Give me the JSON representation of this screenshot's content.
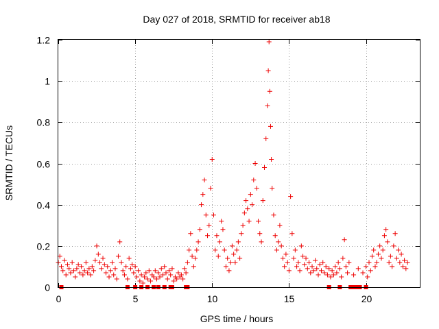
{
  "chart_data": {
    "type": "scatter",
    "title": "Day 027 of 2018, SRMTID for receiver ab18",
    "xlabel": "GPS time / hours",
    "ylabel": "SRMTID / TECUs",
    "xlim": [
      0,
      23.5
    ],
    "ylim": [
      0,
      1.2
    ],
    "x_ticks": [
      0,
      5,
      10,
      15,
      20
    ],
    "x_tick_labels": [
      "0",
      "5",
      "10",
      "15",
      "20"
    ],
    "y_ticks": [
      0,
      0.2,
      0.4,
      0.6,
      0.8,
      1.0,
      1.2
    ],
    "y_tick_labels": [
      "0",
      "0.2",
      "0.4",
      "0.6",
      "0.8",
      "1",
      "1.2"
    ],
    "grid": true,
    "color": "#ee0000",
    "series": [
      {
        "name": "SRMTID",
        "marker": "plus",
        "points": [
          [
            0.0,
            0.12
          ],
          [
            0.1,
            0.15
          ],
          [
            0.2,
            0.1
          ],
          [
            0.3,
            0.08
          ],
          [
            0.4,
            0.13
          ],
          [
            0.5,
            0.06
          ],
          [
            0.6,
            0.11
          ],
          [
            0.7,
            0.09
          ],
          [
            0.8,
            0.07
          ],
          [
            0.9,
            0.12
          ],
          [
            1.0,
            0.08
          ],
          [
            1.1,
            0.05
          ],
          [
            1.2,
            0.09
          ],
          [
            1.3,
            0.11
          ],
          [
            1.4,
            0.07
          ],
          [
            1.5,
            0.1
          ],
          [
            1.6,
            0.06
          ],
          [
            1.7,
            0.08
          ],
          [
            1.8,
            0.12
          ],
          [
            1.9,
            0.07
          ],
          [
            2.0,
            0.09
          ],
          [
            2.1,
            0.06
          ],
          [
            2.2,
            0.1
          ],
          [
            2.3,
            0.08
          ],
          [
            2.4,
            0.13
          ],
          [
            2.5,
            0.2
          ],
          [
            2.6,
            0.16
          ],
          [
            2.7,
            0.12
          ],
          [
            2.8,
            0.09
          ],
          [
            2.9,
            0.14
          ],
          [
            3.0,
            0.11
          ],
          [
            3.1,
            0.07
          ],
          [
            3.2,
            0.1
          ],
          [
            3.3,
            0.05
          ],
          [
            3.4,
            0.08
          ],
          [
            3.5,
            0.12
          ],
          [
            3.6,
            0.06
          ],
          [
            3.7,
            0.09
          ],
          [
            3.8,
            0.04
          ],
          [
            3.9,
            0.15
          ],
          [
            4.0,
            0.22
          ],
          [
            4.1,
            0.12
          ],
          [
            4.2,
            0.08
          ],
          [
            4.3,
            0.06
          ],
          [
            4.4,
            0.1
          ],
          [
            4.5,
            0.04
          ],
          [
            4.6,
            0.14
          ],
          [
            4.7,
            0.09
          ],
          [
            4.8,
            0.11
          ],
          [
            4.9,
            0.07
          ],
          [
            5.0,
            0.1
          ],
          [
            5.1,
            0.05
          ],
          [
            5.2,
            0.08
          ],
          [
            5.3,
            0.03
          ],
          [
            5.4,
            0.06
          ],
          [
            5.5,
            0.02
          ],
          [
            5.6,
            0.05
          ],
          [
            5.7,
            0.07
          ],
          [
            5.8,
            0.04
          ],
          [
            5.9,
            0.08
          ],
          [
            6.0,
            0.03
          ],
          [
            6.1,
            0.06
          ],
          [
            6.2,
            0.05
          ],
          [
            6.3,
            0.08
          ],
          [
            6.4,
            0.04
          ],
          [
            6.5,
            0.07
          ],
          [
            6.6,
            0.05
          ],
          [
            6.7,
            0.09
          ],
          [
            6.8,
            0.06
          ],
          [
            6.9,
            0.1
          ],
          [
            7.0,
            0.07
          ],
          [
            7.1,
            0.04
          ],
          [
            7.2,
            0.08
          ],
          [
            7.3,
            0.06
          ],
          [
            7.4,
            0.09
          ],
          [
            7.5,
            0.03
          ],
          [
            7.6,
            0.05
          ],
          [
            7.7,
            0.04
          ],
          [
            7.8,
            0.07
          ],
          [
            7.9,
            0.05
          ],
          [
            8.0,
            0.06
          ],
          [
            8.1,
            0.04
          ],
          [
            8.2,
            0.09
          ],
          [
            8.3,
            0.07
          ],
          [
            8.4,
            0.12
          ],
          [
            8.5,
            0.18
          ],
          [
            8.6,
            0.26
          ],
          [
            8.7,
            0.15
          ],
          [
            8.8,
            0.1
          ],
          [
            8.9,
            0.14
          ],
          [
            9.0,
            0.18
          ],
          [
            9.1,
            0.22
          ],
          [
            9.2,
            0.28
          ],
          [
            9.3,
            0.4
          ],
          [
            9.4,
            0.45
          ],
          [
            9.5,
            0.52
          ],
          [
            9.6,
            0.35
          ],
          [
            9.7,
            0.25
          ],
          [
            9.8,
            0.3
          ],
          [
            9.9,
            0.48
          ],
          [
            10.0,
            0.62
          ],
          [
            10.1,
            0.35
          ],
          [
            10.2,
            0.18
          ],
          [
            10.3,
            0.25
          ],
          [
            10.4,
            0.15
          ],
          [
            10.5,
            0.22
          ],
          [
            10.6,
            0.32
          ],
          [
            10.7,
            0.28
          ],
          [
            10.8,
            0.18
          ],
          [
            10.9,
            0.1
          ],
          [
            11.0,
            0.14
          ],
          [
            11.1,
            0.08
          ],
          [
            11.2,
            0.12
          ],
          [
            11.3,
            0.2
          ],
          [
            11.4,
            0.16
          ],
          [
            11.5,
            0.12
          ],
          [
            11.6,
            0.18
          ],
          [
            11.7,
            0.22
          ],
          [
            11.8,
            0.14
          ],
          [
            11.9,
            0.26
          ],
          [
            12.0,
            0.3
          ],
          [
            12.1,
            0.36
          ],
          [
            12.2,
            0.42
          ],
          [
            12.3,
            0.38
          ],
          [
            12.4,
            0.32
          ],
          [
            12.5,
            0.45
          ],
          [
            12.6,
            0.4
          ],
          [
            12.7,
            0.52
          ],
          [
            12.8,
            0.6
          ],
          [
            12.9,
            0.48
          ],
          [
            13.0,
            0.32
          ],
          [
            13.1,
            0.26
          ],
          [
            13.2,
            0.22
          ],
          [
            13.3,
            0.42
          ],
          [
            13.4,
            0.58
          ],
          [
            13.5,
            0.72
          ],
          [
            13.6,
            0.88
          ],
          [
            13.65,
            1.05
          ],
          [
            13.7,
            1.19
          ],
          [
            13.75,
            0.95
          ],
          [
            13.8,
            0.78
          ],
          [
            13.85,
            0.62
          ],
          [
            13.9,
            0.48
          ],
          [
            14.0,
            0.35
          ],
          [
            14.1,
            0.25
          ],
          [
            14.2,
            0.18
          ],
          [
            14.3,
            0.22
          ],
          [
            14.4,
            0.3
          ],
          [
            14.5,
            0.2
          ],
          [
            14.6,
            0.14
          ],
          [
            14.7,
            0.1
          ],
          [
            14.8,
            0.16
          ],
          [
            14.9,
            0.12
          ],
          [
            15.0,
            0.08
          ],
          [
            15.1,
            0.44
          ],
          [
            15.2,
            0.26
          ],
          [
            15.3,
            0.14
          ],
          [
            15.4,
            0.18
          ],
          [
            15.5,
            0.1
          ],
          [
            15.6,
            0.12
          ],
          [
            15.7,
            0.08
          ],
          [
            15.8,
            0.2
          ],
          [
            15.9,
            0.15
          ],
          [
            16.0,
            0.11
          ],
          [
            16.1,
            0.14
          ],
          [
            16.2,
            0.09
          ],
          [
            16.3,
            0.12
          ],
          [
            16.4,
            0.07
          ],
          [
            16.5,
            0.1
          ],
          [
            16.6,
            0.08
          ],
          [
            16.7,
            0.13
          ],
          [
            16.8,
            0.09
          ],
          [
            16.9,
            0.06
          ],
          [
            17.0,
            0.11
          ],
          [
            17.1,
            0.08
          ],
          [
            17.2,
            0.12
          ],
          [
            17.3,
            0.07
          ],
          [
            17.4,
            0.1
          ],
          [
            17.5,
            0.06
          ],
          [
            17.6,
            0.09
          ],
          [
            17.7,
            0.05
          ],
          [
            17.8,
            0.08
          ],
          [
            17.9,
            0.06
          ],
          [
            18.0,
            0.1
          ],
          [
            18.1,
            0.07
          ],
          [
            18.2,
            0.12
          ],
          [
            18.3,
            0.09
          ],
          [
            18.4,
            0.05
          ],
          [
            18.5,
            0.14
          ],
          [
            18.6,
            0.23
          ],
          [
            18.7,
            0.1
          ],
          [
            18.8,
            0.07
          ],
          [
            18.9,
            0.12
          ],
          [
            19.2,
            0.06
          ],
          [
            19.5,
            0.09
          ],
          [
            19.8,
            0.07
          ],
          [
            20.0,
            0.1
          ],
          [
            20.1,
            0.05
          ],
          [
            20.2,
            0.12
          ],
          [
            20.3,
            0.08
          ],
          [
            20.4,
            0.15
          ],
          [
            20.5,
            0.18
          ],
          [
            20.6,
            0.1
          ],
          [
            20.7,
            0.12
          ],
          [
            20.8,
            0.16
          ],
          [
            20.9,
            0.2
          ],
          [
            21.0,
            0.14
          ],
          [
            21.1,
            0.18
          ],
          [
            21.2,
            0.25
          ],
          [
            21.3,
            0.28
          ],
          [
            21.4,
            0.22
          ],
          [
            21.5,
            0.12
          ],
          [
            21.6,
            0.15
          ],
          [
            21.7,
            0.1
          ],
          [
            21.8,
            0.2
          ],
          [
            21.9,
            0.26
          ],
          [
            22.0,
            0.14
          ],
          [
            22.1,
            0.18
          ],
          [
            22.2,
            0.12
          ],
          [
            22.3,
            0.16
          ],
          [
            22.4,
            0.1
          ],
          [
            22.5,
            0.13
          ],
          [
            22.6,
            0.09
          ],
          [
            22.7,
            0.12
          ]
        ]
      },
      {
        "name": "zero-level",
        "marker": "square",
        "points": [
          [
            0.2,
            0
          ],
          [
            4.5,
            0
          ],
          [
            5.0,
            0
          ],
          [
            5.4,
            0
          ],
          [
            5.8,
            0
          ],
          [
            6.2,
            0
          ],
          [
            6.5,
            0
          ],
          [
            6.9,
            0
          ],
          [
            7.3,
            0
          ],
          [
            7.4,
            0
          ],
          [
            8.3,
            0
          ],
          [
            8.4,
            0
          ],
          [
            17.6,
            0
          ],
          [
            18.3,
            0
          ],
          [
            19.0,
            0
          ],
          [
            19.2,
            0
          ],
          [
            19.4,
            0
          ],
          [
            19.6,
            0
          ],
          [
            20.0,
            0
          ]
        ]
      }
    ]
  }
}
